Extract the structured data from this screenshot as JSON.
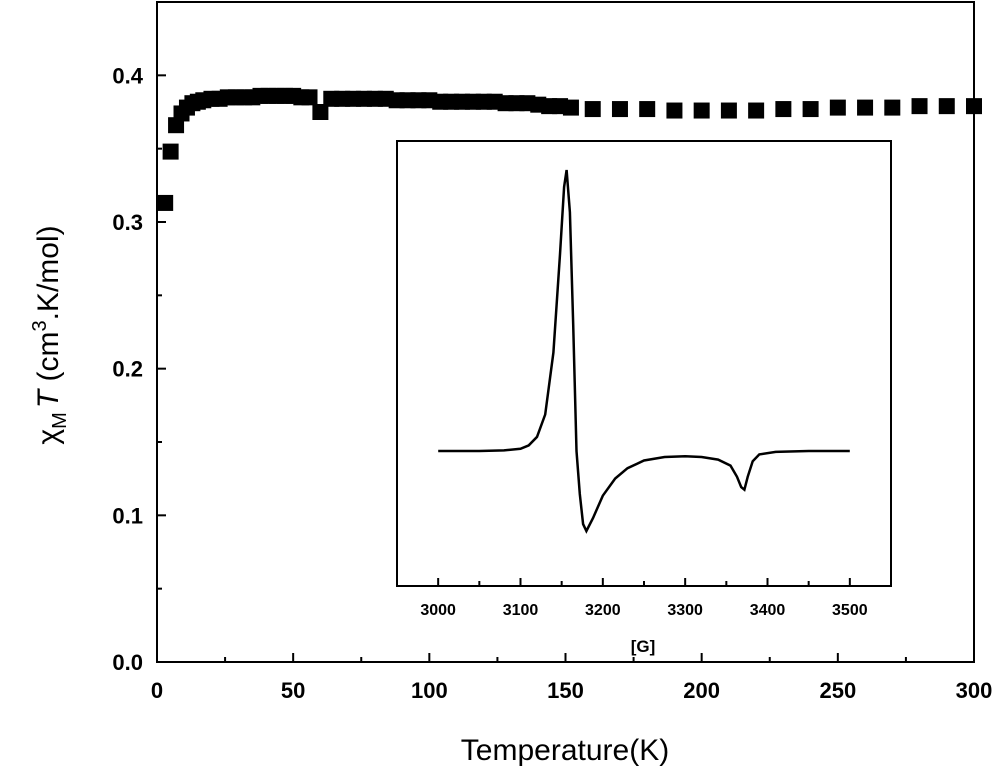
{
  "chart_data": [
    {
      "type": "scatter",
      "xlabel": "Temperature(K)",
      "ylabel": {
        "chi": "χ",
        "sub": "M",
        "T": "T",
        "unit_pre": " (cm",
        "sup": "3",
        "unit_post": ".K/mol)"
      },
      "xlim": [
        0,
        300
      ],
      "ylim": [
        0,
        0.45
      ],
      "x_ticks": [
        0,
        50,
        100,
        150,
        200,
        250,
        300
      ],
      "y_ticks": [
        0.0,
        0.1,
        0.2,
        0.3,
        0.4
      ],
      "y_tick_labels": [
        "0.0",
        "0.1",
        "0.2",
        "0.3",
        "0.4"
      ],
      "marker": "square",
      "series": [
        {
          "points": [
            [
              3,
              0.313
            ],
            [
              5,
              0.348
            ],
            [
              7,
              0.366
            ],
            [
              9,
              0.374
            ],
            [
              11,
              0.378
            ],
            [
              13,
              0.381
            ],
            [
              15,
              0.382
            ],
            [
              17,
              0.383
            ],
            [
              20,
              0.384
            ],
            [
              23,
              0.384
            ],
            [
              26,
              0.385
            ],
            [
              29,
              0.385
            ],
            [
              32,
              0.385
            ],
            [
              35,
              0.385
            ],
            [
              38,
              0.386
            ],
            [
              41,
              0.386
            ],
            [
              44,
              0.386
            ],
            [
              47,
              0.386
            ],
            [
              50,
              0.386
            ],
            [
              53,
              0.385
            ],
            [
              56,
              0.385
            ],
            [
              60,
              0.375
            ],
            [
              64,
              0.384
            ],
            [
              68,
              0.384
            ],
            [
              72,
              0.384
            ],
            [
              76,
              0.384
            ],
            [
              80,
              0.384
            ],
            [
              84,
              0.384
            ],
            [
              88,
              0.383
            ],
            [
              92,
              0.383
            ],
            [
              96,
              0.383
            ],
            [
              100,
              0.383
            ],
            [
              104,
              0.382
            ],
            [
              108,
              0.382
            ],
            [
              112,
              0.382
            ],
            [
              116,
              0.382
            ],
            [
              120,
              0.382
            ],
            [
              124,
              0.382
            ],
            [
              128,
              0.381
            ],
            [
              132,
              0.381
            ],
            [
              136,
              0.381
            ],
            [
              140,
              0.38
            ],
            [
              144,
              0.379
            ],
            [
              148,
              0.379
            ],
            [
              152,
              0.378
            ],
            [
              160,
              0.377
            ],
            [
              170,
              0.377
            ],
            [
              180,
              0.377
            ],
            [
              190,
              0.376
            ],
            [
              200,
              0.376
            ],
            [
              210,
              0.376
            ],
            [
              220,
              0.376
            ],
            [
              230,
              0.377
            ],
            [
              240,
              0.377
            ],
            [
              250,
              0.378
            ],
            [
              260,
              0.378
            ],
            [
              270,
              0.378
            ],
            [
              280,
              0.379
            ],
            [
              290,
              0.379
            ],
            [
              300,
              0.379
            ]
          ]
        }
      ]
    },
    {
      "type": "line",
      "xlabel": "[G]",
      "ylabel": "",
      "xlim": [
        2950,
        3550
      ],
      "ylim": [
        -1,
        1
      ],
      "x_ticks": [
        3000,
        3100,
        3200,
        3300,
        3400,
        3500
      ],
      "series": [
        {
          "points": [
            [
              3000,
              0.0
            ],
            [
              3050,
              0.0
            ],
            [
              3080,
              0.002
            ],
            [
              3100,
              0.008
            ],
            [
              3110,
              0.02
            ],
            [
              3120,
              0.05
            ],
            [
              3130,
              0.13
            ],
            [
              3140,
              0.35
            ],
            [
              3148,
              0.7
            ],
            [
              3153,
              0.94
            ],
            [
              3156,
              1.0
            ],
            [
              3160,
              0.85
            ],
            [
              3164,
              0.45
            ],
            [
              3168,
              0.0
            ],
            [
              3172,
              -0.5
            ],
            [
              3176,
              -0.85
            ],
            [
              3180,
              -0.93
            ],
            [
              3188,
              -0.78
            ],
            [
              3200,
              -0.52
            ],
            [
              3215,
              -0.32
            ],
            [
              3230,
              -0.2
            ],
            [
              3250,
              -0.11
            ],
            [
              3275,
              -0.07
            ],
            [
              3300,
              -0.06
            ],
            [
              3320,
              -0.07
            ],
            [
              3340,
              -0.1
            ],
            [
              3355,
              -0.17
            ],
            [
              3363,
              -0.3
            ],
            [
              3368,
              -0.42
            ],
            [
              3372,
              -0.45
            ],
            [
              3376,
              -0.3
            ],
            [
              3382,
              -0.12
            ],
            [
              3390,
              -0.04
            ],
            [
              3410,
              -0.01
            ],
            [
              3450,
              0.0
            ],
            [
              3500,
              0.0
            ]
          ]
        }
      ]
    }
  ]
}
